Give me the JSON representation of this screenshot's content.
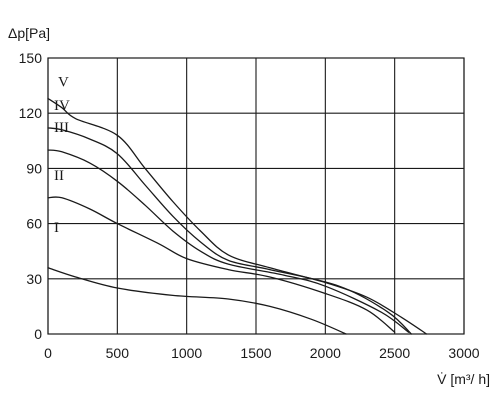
{
  "chart_data": {
    "type": "line",
    "title": "",
    "xlabel": "V̇ [m³/ h]",
    "ylabel": "Δp[Pa]",
    "xlim": [
      0,
      3000
    ],
    "ylim": [
      0,
      150
    ],
    "x_ticks": [
      0,
      500,
      1000,
      1500,
      2000,
      2500,
      3000
    ],
    "y_ticks": [
      0,
      30,
      60,
      90,
      120,
      150
    ],
    "grid": true,
    "legend": "none",
    "series": [
      {
        "name": "I",
        "x": [
          0,
          200,
          500,
          900,
          1300,
          1600,
          1900,
          2150
        ],
        "y": [
          36,
          31,
          25,
          21,
          19,
          15,
          8,
          0
        ]
      },
      {
        "name": "II",
        "x": [
          0,
          100,
          300,
          500,
          800,
          1000,
          1300,
          1600,
          2000,
          2300,
          2500
        ],
        "y": [
          74,
          74,
          68,
          60,
          49,
          41,
          35,
          31,
          22,
          13,
          1
        ]
      },
      {
        "name": "III",
        "x": [
          0,
          100,
          300,
          500,
          700,
          900,
          1100,
          1300,
          1700,
          2000,
          2400,
          2600
        ],
        "y": [
          100,
          99,
          93,
          83,
          70,
          56,
          45,
          38,
          32,
          26,
          12,
          1
        ]
      },
      {
        "name": "IV",
        "x": [
          0,
          100,
          300,
          500,
          700,
          900,
          1100,
          1300,
          1600,
          2100,
          2450,
          2620
        ],
        "y": [
          112,
          111,
          106,
          98,
          81,
          64,
          50,
          40,
          35,
          26,
          12,
          0
        ]
      },
      {
        "name": "V",
        "x": [
          0,
          100,
          200,
          500,
          700,
          900,
          1100,
          1300,
          1600,
          2000,
          2300,
          2550,
          2730
        ],
        "y": [
          128,
          123,
          117,
          108,
          90,
          72,
          56,
          43,
          36,
          28,
          20,
          9,
          0
        ]
      }
    ]
  }
}
